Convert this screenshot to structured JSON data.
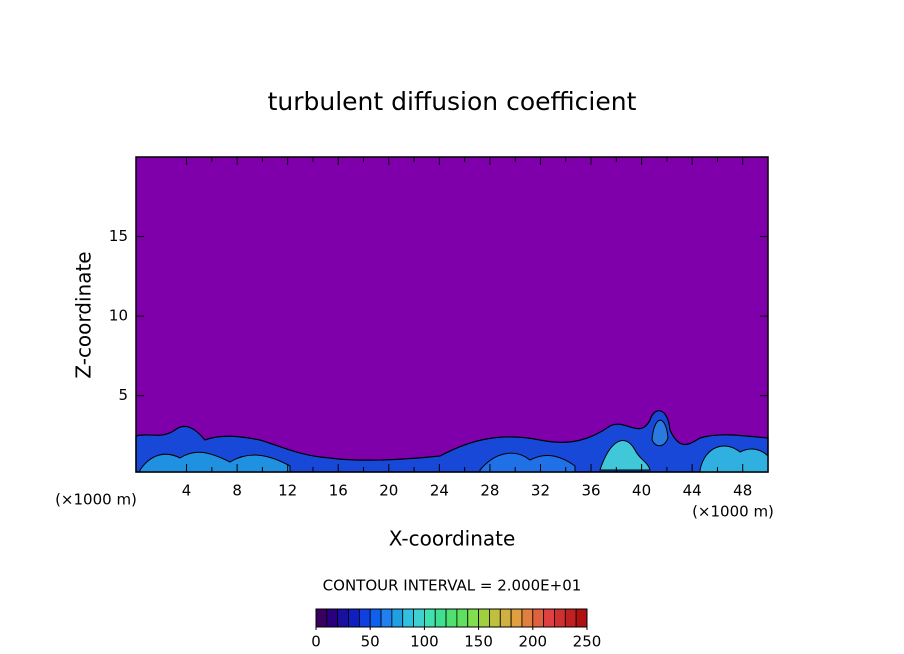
{
  "chart_data": {
    "type": "contour",
    "title": "turbulent diffusion coefficient",
    "x_label": "X-coordinate",
    "y_label": "Z-coordinate",
    "x_unit_left": "(×1000 m)",
    "x_unit_right": "(×1000 m)",
    "xlim": [
      0,
      50
    ],
    "xticks": [
      4,
      8,
      12,
      16,
      20,
      24,
      28,
      32,
      36,
      40,
      44,
      48
    ],
    "ylim": [
      0.2,
      20
    ],
    "yticks": [
      5,
      10,
      15
    ],
    "background_color": "#7f00aa",
    "contour_interval_text": "CONTOUR INTERVAL = 2.000E+01",
    "colorbar": {
      "lim": [
        0,
        250
      ],
      "ticks": [
        0,
        50,
        100,
        150,
        200,
        250
      ],
      "colors": [
        "#3a0060",
        "#2a0080",
        "#1a10a0",
        "#1020c0",
        "#1040e0",
        "#1060f0",
        "#2080f0",
        "#20a0e0",
        "#30c0e0",
        "#40d0d0",
        "#40e0b0",
        "#40e090",
        "#50e070",
        "#60e060",
        "#80e050",
        "#a0d040",
        "#c0c040",
        "#d0b040",
        "#e0a040",
        "#e08040",
        "#e06040",
        "#e04040",
        "#d03030",
        "#c02020",
        "#b01010"
      ]
    }
  }
}
